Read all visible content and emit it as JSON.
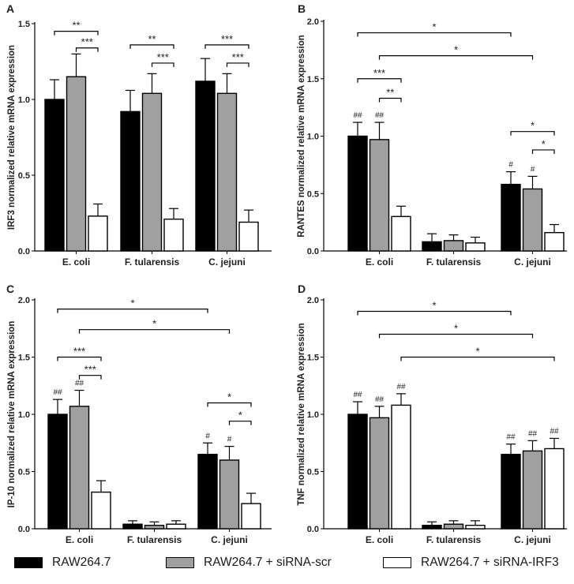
{
  "legend": [
    {
      "name": "RAW264.7",
      "color": "#000000"
    },
    {
      "name": "RAW264.7 + siRNA-scr",
      "color": "#a0a0a0"
    },
    {
      "name": "RAW264.7 + siRNA-IRF3",
      "color": "#ffffff"
    }
  ],
  "chart_data": [
    {
      "panel": "A",
      "type": "bar",
      "ylabel": "IRF3 normalized relative mRNA expression",
      "ylim": [
        0,
        1.5
      ],
      "yticks": [
        "0.0",
        "0.5",
        "1.0",
        "1.5"
      ],
      "ytick_values": [
        0,
        0.5,
        1.0,
        1.5
      ],
      "categories": [
        "E. coli",
        "F. tularensis",
        "C. jejuni"
      ],
      "series": [
        {
          "name": "RAW264.7",
          "values": [
            1.0,
            0.92,
            1.12
          ],
          "errors": [
            0.13,
            0.14,
            0.15
          ],
          "marks": [
            "",
            "",
            ""
          ]
        },
        {
          "name": "RAW264.7 + siRNA-scr",
          "values": [
            1.15,
            1.04,
            1.04
          ],
          "errors": [
            0.15,
            0.13,
            0.13
          ],
          "marks": [
            "",
            "",
            ""
          ]
        },
        {
          "name": "RAW264.7 + siRNA-IRF3",
          "values": [
            0.23,
            0.21,
            0.19
          ],
          "errors": [
            0.08,
            0.07,
            0.08
          ],
          "marks": [
            "",
            "",
            ""
          ]
        }
      ],
      "brackets": [
        {
          "group": 0,
          "from": 0,
          "to": 2,
          "y": 1.45,
          "label": "**"
        },
        {
          "group": 0,
          "from": 1,
          "to": 2,
          "y": 1.34,
          "label": "***"
        },
        {
          "group": 1,
          "from": 0,
          "to": 2,
          "y": 1.36,
          "label": "**"
        },
        {
          "group": 1,
          "from": 1,
          "to": 2,
          "y": 1.24,
          "label": "***"
        },
        {
          "group": 2,
          "from": 0,
          "to": 2,
          "y": 1.36,
          "label": "***"
        },
        {
          "group": 2,
          "from": 1,
          "to": 2,
          "y": 1.24,
          "label": "***"
        }
      ]
    },
    {
      "panel": "B",
      "type": "bar",
      "ylabel": "RANTES normalized relative mRNA expression",
      "ylim": [
        0,
        2.0
      ],
      "yticks": [
        "0.0",
        "0.5",
        "1.0",
        "1.5",
        "2.0"
      ],
      "ytick_values": [
        0,
        0.5,
        1.0,
        1.5,
        2.0
      ],
      "categories": [
        "E. coli",
        "F. tularensis",
        "C. jejuni"
      ],
      "series": [
        {
          "name": "RAW264.7",
          "values": [
            1.0,
            0.08,
            0.58
          ],
          "errors": [
            0.12,
            0.07,
            0.11
          ],
          "marks": [
            "##",
            "",
            "#"
          ]
        },
        {
          "name": "RAW264.7 + siRNA-scr",
          "values": [
            0.97,
            0.09,
            0.54
          ],
          "errors": [
            0.15,
            0.05,
            0.11
          ],
          "marks": [
            "##",
            "",
            "#"
          ]
        },
        {
          "name": "RAW264.7 + siRNA-IRF3",
          "values": [
            0.3,
            0.07,
            0.16
          ],
          "errors": [
            0.09,
            0.05,
            0.07
          ],
          "marks": [
            "",
            "",
            ""
          ]
        }
      ],
      "brackets": [
        {
          "group": 0,
          "from": 0,
          "to": 2,
          "y": 1.5,
          "label": "***"
        },
        {
          "group": 0,
          "from": 1,
          "to": 2,
          "y": 1.33,
          "label": "**"
        },
        {
          "group": 2,
          "from": 0,
          "to": 2,
          "y": 1.04,
          "label": "*"
        },
        {
          "group": 2,
          "from": 1,
          "to": 2,
          "y": 0.88,
          "label": "*"
        }
      ],
      "long_brackets": [
        {
          "from_group": 0,
          "from_bar": 0,
          "to_group": 2,
          "to_bar": 0,
          "y": 1.9,
          "label": "*"
        },
        {
          "from_group": 0,
          "from_bar": 1,
          "to_group": 2,
          "to_bar": 1,
          "y": 1.7,
          "label": "*"
        }
      ]
    },
    {
      "panel": "C",
      "type": "bar",
      "ylabel": "IP-10 normalized relative mRNA expression",
      "ylim": [
        0,
        2.0
      ],
      "yticks": [
        "0.0",
        "0.5",
        "1.0",
        "1.5",
        "2.0"
      ],
      "ytick_values": [
        0,
        0.5,
        1.0,
        1.5,
        2.0
      ],
      "categories": [
        "E. coli",
        "F. tularensis",
        "C. jejuni"
      ],
      "series": [
        {
          "name": "RAW264.7",
          "values": [
            1.0,
            0.04,
            0.65
          ],
          "errors": [
            0.13,
            0.03,
            0.1
          ],
          "marks": [
            "##",
            "",
            "#"
          ]
        },
        {
          "name": "RAW264.7 + siRNA-scr",
          "values": [
            1.07,
            0.03,
            0.6
          ],
          "errors": [
            0.14,
            0.03,
            0.12
          ],
          "marks": [
            "##",
            "",
            "#"
          ]
        },
        {
          "name": "RAW264.7 + siRNA-IRF3",
          "values": [
            0.32,
            0.04,
            0.22
          ],
          "errors": [
            0.1,
            0.03,
            0.09
          ],
          "marks": [
            "",
            "",
            ""
          ]
        }
      ],
      "brackets": [
        {
          "group": 0,
          "from": 0,
          "to": 2,
          "y": 1.5,
          "label": "***"
        },
        {
          "group": 0,
          "from": 1,
          "to": 2,
          "y": 1.34,
          "label": "***"
        },
        {
          "group": 2,
          "from": 0,
          "to": 2,
          "y": 1.1,
          "label": "*"
        },
        {
          "group": 2,
          "from": 1,
          "to": 2,
          "y": 0.94,
          "label": "*"
        }
      ],
      "long_brackets": [
        {
          "from_group": 0,
          "from_bar": 0,
          "to_group": 2,
          "to_bar": 0,
          "y": 1.92,
          "label": "*"
        },
        {
          "from_group": 0,
          "from_bar": 1,
          "to_group": 2,
          "to_bar": 1,
          "y": 1.74,
          "label": "*"
        }
      ]
    },
    {
      "panel": "D",
      "type": "bar",
      "ylabel": "TNF normalized relative mRNA expression",
      "ylim": [
        0,
        2.0
      ],
      "yticks": [
        "0.0",
        "0.5",
        "1.0",
        "1.5",
        "2.0"
      ],
      "ytick_values": [
        0,
        0.5,
        1.0,
        1.5,
        2.0
      ],
      "categories": [
        "E. coli",
        "F. tularensis",
        "C. jejuni"
      ],
      "series": [
        {
          "name": "RAW264.7",
          "values": [
            1.0,
            0.03,
            0.65
          ],
          "errors": [
            0.11,
            0.03,
            0.09
          ],
          "marks": [
            "##",
            "",
            "##"
          ]
        },
        {
          "name": "RAW264.7 + siRNA-scr",
          "values": [
            0.97,
            0.04,
            0.68
          ],
          "errors": [
            0.1,
            0.03,
            0.09
          ],
          "marks": [
            "##",
            "",
            "##"
          ]
        },
        {
          "name": "RAW264.7 + siRNA-IRF3",
          "values": [
            1.08,
            0.03,
            0.7
          ],
          "errors": [
            0.1,
            0.04,
            0.09
          ],
          "marks": [
            "##",
            "",
            "##"
          ]
        }
      ],
      "brackets": [],
      "long_brackets": [
        {
          "from_group": 0,
          "from_bar": 0,
          "to_group": 2,
          "to_bar": 0,
          "y": 1.9,
          "label": "*"
        },
        {
          "from_group": 0,
          "from_bar": 1,
          "to_group": 2,
          "to_bar": 1,
          "y": 1.7,
          "label": "*"
        },
        {
          "from_group": 0,
          "from_bar": 2,
          "to_group": 2,
          "to_bar": 2,
          "y": 1.5,
          "label": "*"
        }
      ]
    }
  ]
}
